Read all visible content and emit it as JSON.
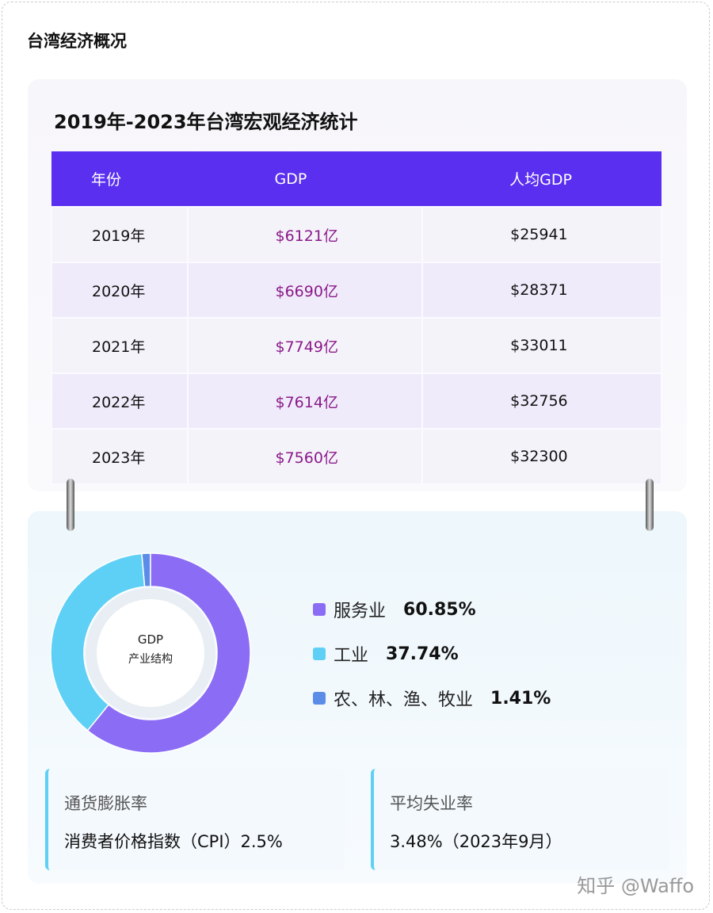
{
  "page_title": "台湾经济概况",
  "table": {
    "title": "2019年-2023年台湾宏观经济统计",
    "header": [
      "年份",
      "GDP",
      "人均GDP"
    ],
    "rows": [
      [
        "2019年",
        "$6121亿",
        "$25941"
      ],
      [
        "2020年",
        "$6690亿",
        "$28371"
      ],
      [
        "2021年",
        "$7749亿",
        "$33011"
      ],
      [
        "2022年",
        "$7614亿",
        "$32756"
      ],
      [
        "2023年",
        "$7560亿",
        "$32300"
      ]
    ]
  },
  "chart_data": {
    "type": "pie",
    "center_label": [
      "GDP",
      "产业结构"
    ],
    "categories": [
      "服务业",
      "工业",
      "农、林、渔、牧业"
    ],
    "values": [
      60.85,
      37.74,
      1.41
    ],
    "value_labels": [
      "60.85%",
      "37.74%",
      "1.41%"
    ],
    "colors": [
      "#8b6cf5",
      "#5fd0f5",
      "#5b8de8"
    ]
  },
  "cards": [
    {
      "label": "通货膨胀率",
      "value": "消费者价格指数（CPI）2.5%"
    },
    {
      "label": "平均失业率",
      "value": "3.48%（2023年9月）"
    }
  ],
  "watermark": "知乎 @Waffo"
}
